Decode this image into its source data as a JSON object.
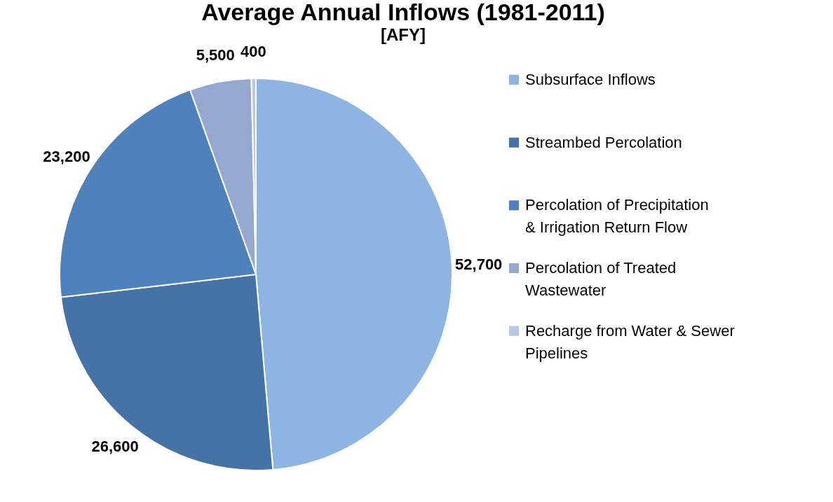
{
  "chart_data": {
    "type": "pie",
    "title": "Average Annual Inflows (1981-2011)",
    "subtitle": "[AFY]",
    "categories": [
      "Subsurface Inflows",
      "Streambed Percolation",
      "Percolation of Precipitation & Irrigation Return Flow",
      "Percolation of Treated Wastewater",
      "Recharge from Water & Sewer Pipelines"
    ],
    "values": [
      52700,
      26600,
      23200,
      5500,
      400
    ],
    "colors": [
      "#8eb4e3",
      "#4673a7",
      "#4f81bd",
      "#95a9d0",
      "#b9c9e4"
    ],
    "value_labels": [
      "52,700",
      "26,600",
      "23,200",
      "5,500",
      "400"
    ],
    "legend": "right"
  }
}
